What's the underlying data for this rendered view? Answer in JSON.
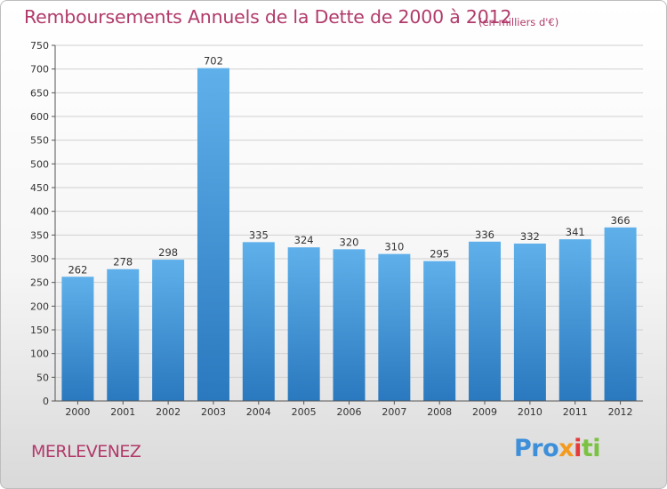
{
  "header": {
    "title": "Remboursements Annuels de la Dette de 2000 à 2012",
    "subtitle": "(en milliers d'€)"
  },
  "footer": {
    "city": "MERLEVENEZ",
    "logo_parts": [
      "Pro",
      "x",
      "i",
      "ti"
    ]
  },
  "colors": {
    "bar_top": "#5fb0ea",
    "bar_bottom": "#2a78be",
    "title": "#b13a6a",
    "grid": "#d0d0d0"
  },
  "chart_data": {
    "type": "bar",
    "categories": [
      "2000",
      "2001",
      "2002",
      "2003",
      "2004",
      "2005",
      "2006",
      "2007",
      "2008",
      "2009",
      "2010",
      "2011",
      "2012"
    ],
    "values": [
      262,
      278,
      298,
      702,
      335,
      324,
      320,
      310,
      295,
      336,
      332,
      341,
      366
    ],
    "title": "Remboursements Annuels de la Dette de 2000 à 2012",
    "subtitle": "(en milliers d'€)",
    "ylim": [
      0,
      750
    ],
    "yticks": [
      0,
      50,
      100,
      150,
      200,
      250,
      300,
      350,
      400,
      450,
      500,
      550,
      600,
      650,
      700,
      750
    ],
    "grid": true
  }
}
